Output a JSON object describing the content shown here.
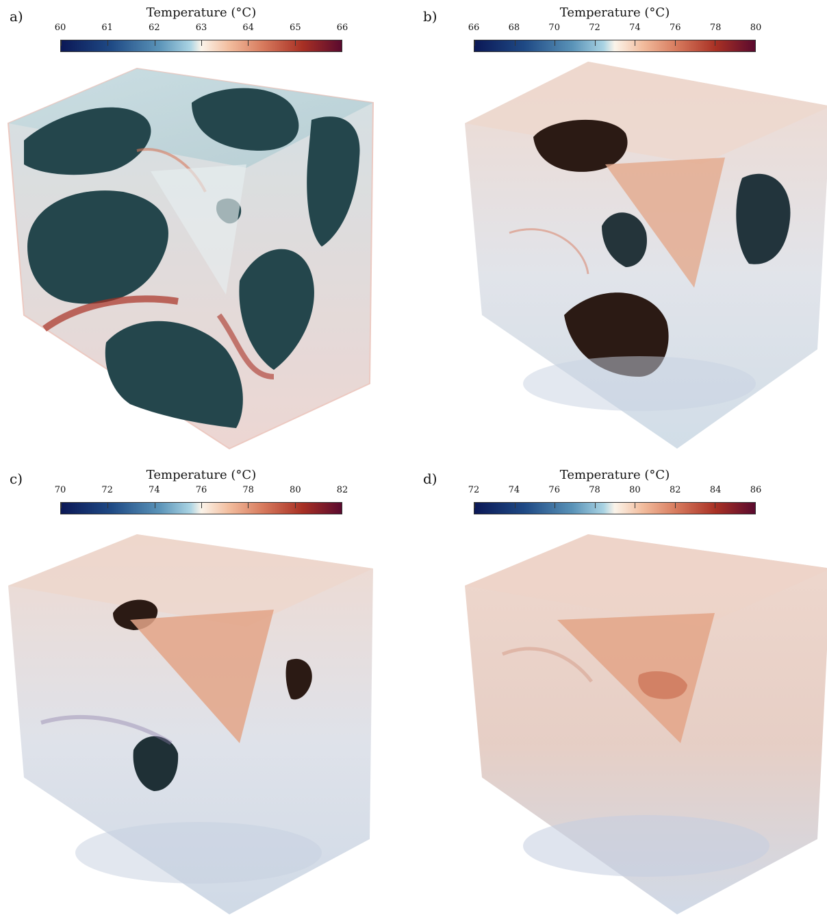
{
  "panels": [
    {
      "label": "a)",
      "colorbar_title": "Temperature (°C)",
      "ticks": [
        "60",
        "61",
        "62",
        "63",
        "64",
        "65",
        "66"
      ],
      "range": [
        60,
        66
      ]
    },
    {
      "label": "b)",
      "colorbar_title": "Temperature (°C)",
      "ticks": [
        "66",
        "68",
        "70",
        "72",
        "74",
        "76",
        "78",
        "80"
      ],
      "range": [
        66,
        80
      ]
    },
    {
      "label": "c)",
      "colorbar_title": "Temperature (°C)",
      "ticks": [
        "70",
        "72",
        "74",
        "76",
        "78",
        "80",
        "82"
      ],
      "range": [
        70,
        82
      ]
    },
    {
      "label": "d)",
      "colorbar_title": "Temperature (°C)",
      "ticks": [
        "72",
        "74",
        "76",
        "78",
        "80",
        "82",
        "84",
        "86"
      ],
      "range": [
        72,
        86
      ]
    }
  ],
  "colors": {
    "cold_dark": "#0b1856",
    "cold": "#5a93b8",
    "neutral": "#fbf4ea",
    "warm": "#d77a5d",
    "hot_dark": "#5a0a2e",
    "frozen_region": "#24464c",
    "hole_dark": "#2b1a14"
  }
}
